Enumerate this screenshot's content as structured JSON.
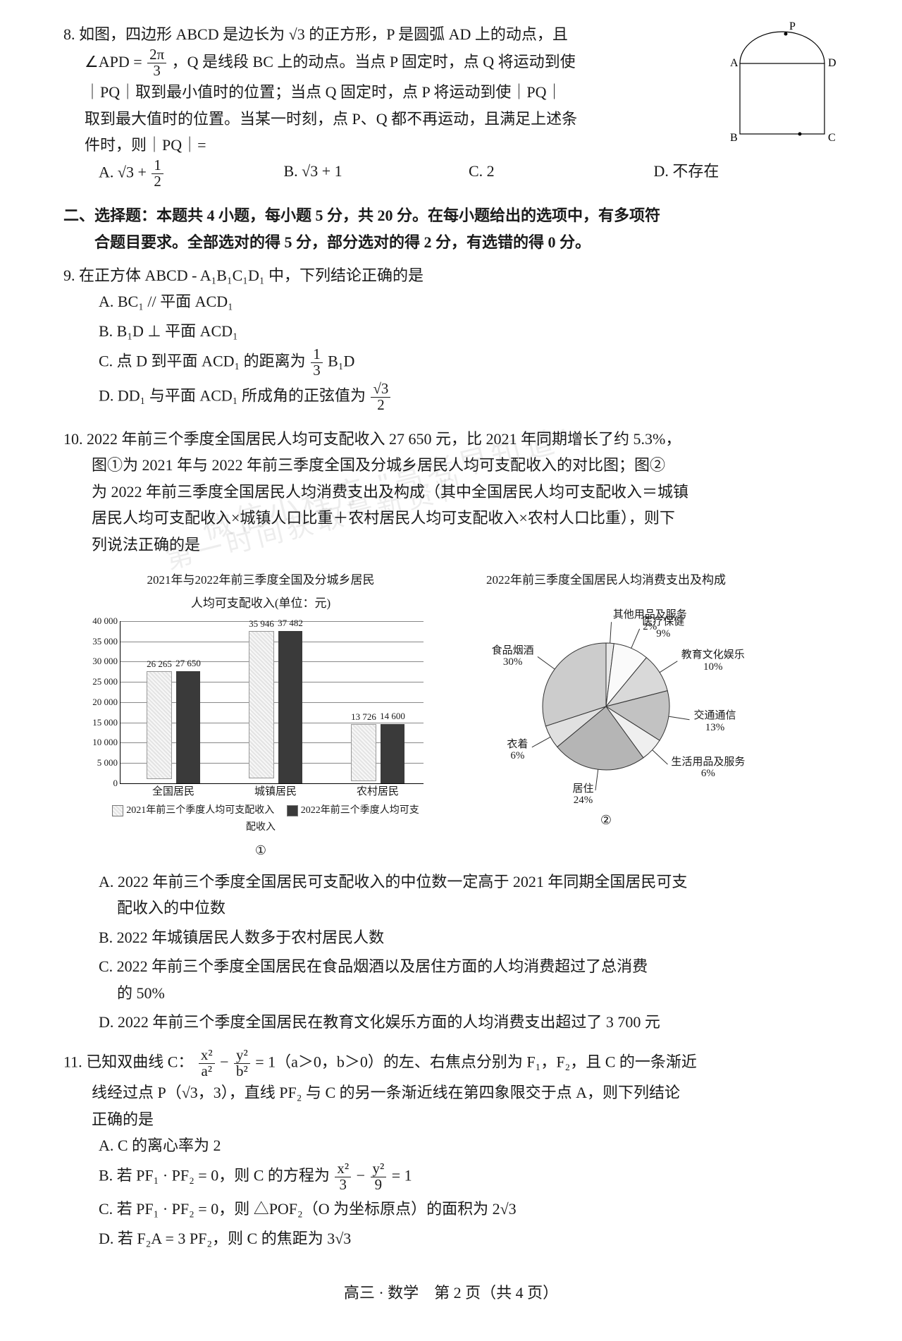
{
  "q8": {
    "number": "8.",
    "text_line1": "如图，四边形 ABCD 是边长为 √3 的正方形，P 是圆弧 AD 上的动点，且",
    "text_line2_open": "∠APD =",
    "frac_num": "2π",
    "frac_den": "3",
    "text_line2_rest": "，Q 是线段 BC 上的动点。当点 P 固定时，点 Q 将运动到使",
    "text_line3": "｜PQ｜取到最小值时的位置；当点 Q 固定时，点 P 将运动到使｜PQ｜",
    "text_line4": "取到最大值时的位置。当某一时刻，点 P、Q 都不再运动，且满足上述条",
    "text_line5": "件时，则｜PQ｜=",
    "choices": {
      "A_pre": "A. √3 +",
      "A_frac_num": "1",
      "A_frac_den": "2",
      "B": "B. √3 + 1",
      "C": "C. 2",
      "D": "D. 不存在"
    },
    "fig_labels": {
      "P": "P",
      "A": "A",
      "D": "D",
      "B": "B",
      "C": "C"
    }
  },
  "section2": {
    "line1": "二、选择题：本题共 4 小题，每小题 5 分，共 20 分。在每小题给出的选项中，有多项符",
    "line2": "合题目要求。全部选对的得 5 分，部分选对的得 2 分，有选错的得 0 分。"
  },
  "q9": {
    "number": "9.",
    "text": "在正方体 ABCD - A₁B₁C₁D₁ 中，下列结论正确的是",
    "A": "A. BC₁ // 平面 ACD₁",
    "B": "B. B₁D ⊥ 平面 ACD₁",
    "C_pre": "C. 点 D 到平面 ACD₁ 的距离为",
    "C_frac_num": "1",
    "C_frac_den": "3",
    "C_post": " B₁D",
    "D_pre": "D. DD₁ 与平面 ACD₁ 所成角的正弦值为",
    "D_frac_num": "√3",
    "D_frac_den": "2"
  },
  "q10": {
    "number": "10.",
    "line1": "2022 年前三个季度全国居民人均可支配收入 27 650 元，比 2021 年同期增长了约 5.3%，",
    "line2": "图①为 2021 年与 2022 年前三季度全国及分城乡居民人均可支配收入的对比图；图②",
    "line3": "为 2022 年前三季度全国居民人均消费支出及构成（其中全国居民人均可支配收入＝城镇",
    "line4": "居民人均可支配收入×城镇人口比重＋农村居民人均可支配收入×农村人口比重），则下",
    "line5": "列说法正确的是",
    "bar_chart": {
      "title1": "2021年与2022年前三季度全国及分城乡居民",
      "title2": "人均可支配收入(单位：元)",
      "ylim": 40000,
      "yticks": [
        "0",
        "5 000",
        "10 000",
        "15 000",
        "20 000",
        "25 000",
        "30 000",
        "35 000",
        "40 000"
      ],
      "categories": [
        "全国居民",
        "城镇居民",
        "农村居民"
      ],
      "series_2021": [
        26265,
        35946,
        13726
      ],
      "series_2022": [
        27650,
        37482,
        14600
      ],
      "legend_2021": "2021年前三个季度人均可支配收入",
      "legend_2022": "2022年前三个季度人均可支配收入",
      "caption": "①",
      "colors": {
        "2021": "#e3e3e3",
        "2022": "#3a3a3a",
        "grid": "#888888"
      }
    },
    "pie_chart": {
      "title1": "2022年前三季度全国居民人均消费支出及构成",
      "slices": [
        {
          "label": "其他用品及服务",
          "pct": "2%",
          "value": 2,
          "color": "#e8e8e8"
        },
        {
          "label": "医疗保健",
          "pct": "9%",
          "value": 9,
          "color": "#fafafa"
        },
        {
          "label": "教育文化娱乐",
          "pct": "10%",
          "value": 10,
          "color": "#d9d9d9"
        },
        {
          "label": "交通通信",
          "pct": "13%",
          "value": 13,
          "color": "#c2c2c2"
        },
        {
          "label": "生活用品及服务",
          "pct": "6%",
          "value": 6,
          "color": "#efefef"
        },
        {
          "label": "居住",
          "pct": "24%",
          "value": 24,
          "color": "#b5b5b5"
        },
        {
          "label": "衣着",
          "pct": "6%",
          "value": 6,
          "color": "#e0e0e0"
        },
        {
          "label": "食品烟酒",
          "pct": "30%",
          "value": 30,
          "color": "#cccccc"
        }
      ],
      "caption": "②"
    },
    "A1": "A. 2022 年前三个季度全国居民可支配收入的中位数一定高于 2021 年同期全国居民可支",
    "A2": "配收入的中位数",
    "B": "B. 2022 年城镇居民人数多于农村居民人数",
    "C1": "C. 2022 年前三个季度全国居民在食品烟酒以及居住方面的人均消费超过了总消费",
    "C2": "的 50%",
    "D": "D. 2022 年前三个季度全国居民在教育文化娱乐方面的人均消费支出超过了 3 700 元"
  },
  "q11": {
    "number": "11.",
    "line1_pre": "已知双曲线 C：",
    "eq_left_num": "x²",
    "eq_left_den": "a²",
    "eq_mid": " − ",
    "eq_right_num": "y²",
    "eq_right_den": "b²",
    "line1_post": " = 1（a＞0，b＞0）的左、右焦点分别为 F₁，F₂，且 C 的一条渐近",
    "line2": "线经过点 P（√3，3），直线 PF₂ 与 C 的另一条渐近线在第四象限交于点 A，则下列结论",
    "line3": "正确的是",
    "A": "A. C 的离心率为 2",
    "B_pre": "B. 若 PF₁ · PF₂ = 0，则 C 的方程为",
    "B_frac1_num": "x²",
    "B_frac1_den": "3",
    "B_mid": " − ",
    "B_frac2_num": "y²",
    "B_frac2_den": "9",
    "B_post": " = 1",
    "C": "C. 若 PF₁ · PF₂ = 0，则 △POF₂（O 为坐标原点）的面积为 2√3",
    "D": "D. 若 F₂A = 3 PF₂，则 C 的焦距为 3√3"
  },
  "footer": "高三 · 数学　第 2 页（共 4 页）",
  "watermark1": "微信小程序  \"高考早知道\"",
  "watermark2": "第一时间获取最新资料"
}
